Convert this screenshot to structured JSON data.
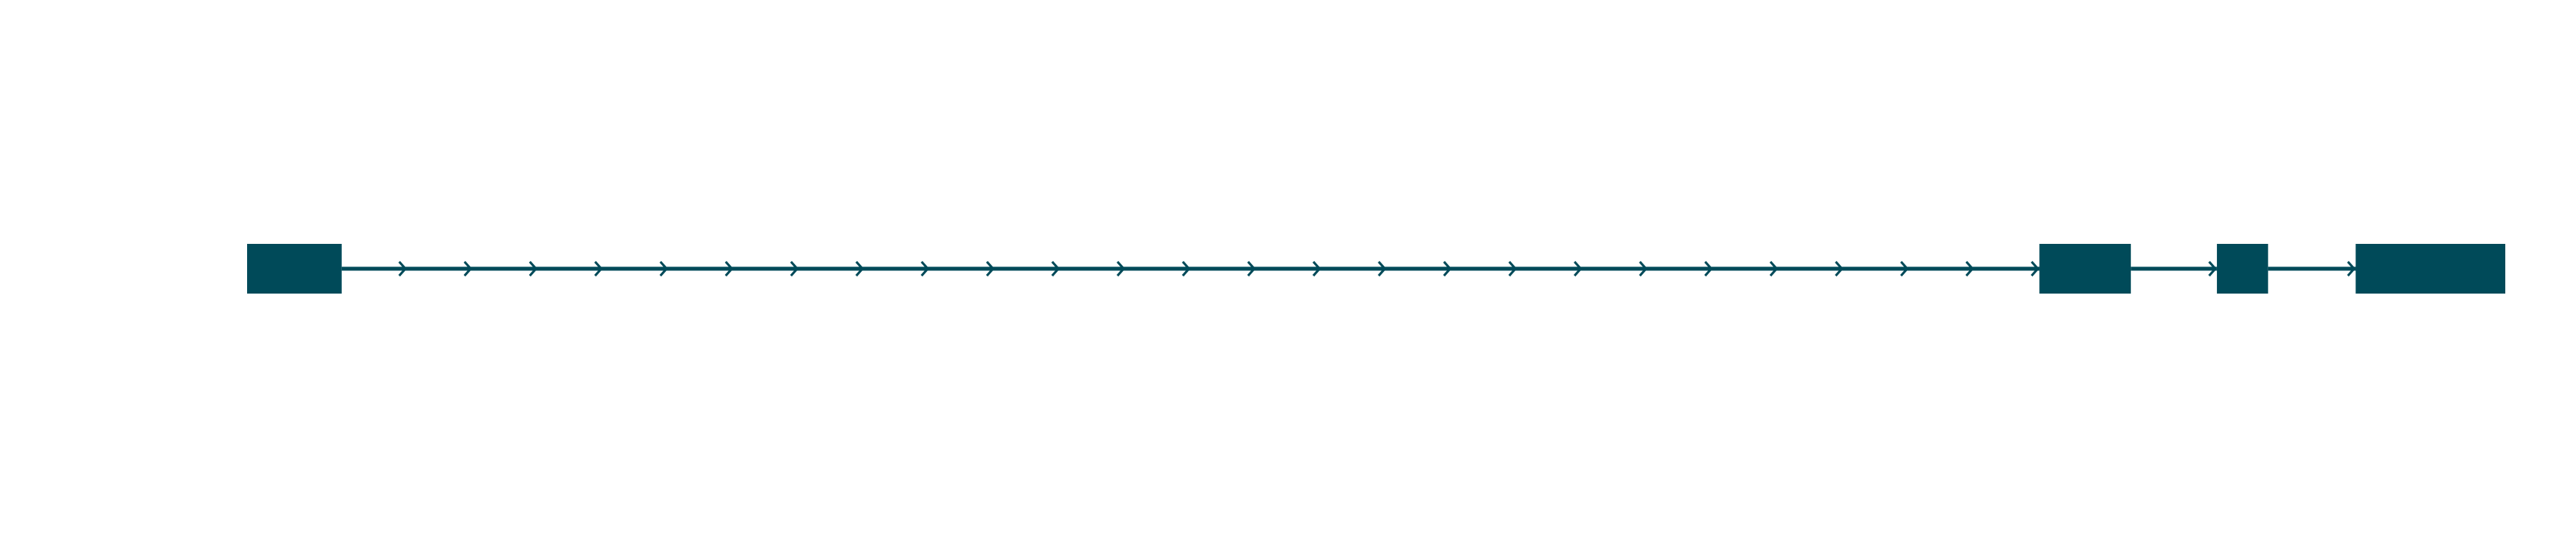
{
  "diagram": {
    "type": "gene-structure",
    "strand": "forward",
    "color": "#004a59",
    "exons": [
      {
        "start": 0,
        "end": 122
      },
      {
        "start": 2312,
        "end": 2430
      },
      {
        "start": 2541,
        "end": 2607
      },
      {
        "start": 2720,
        "end": 2913
      }
    ],
    "span": [
      0,
      2913
    ]
  }
}
